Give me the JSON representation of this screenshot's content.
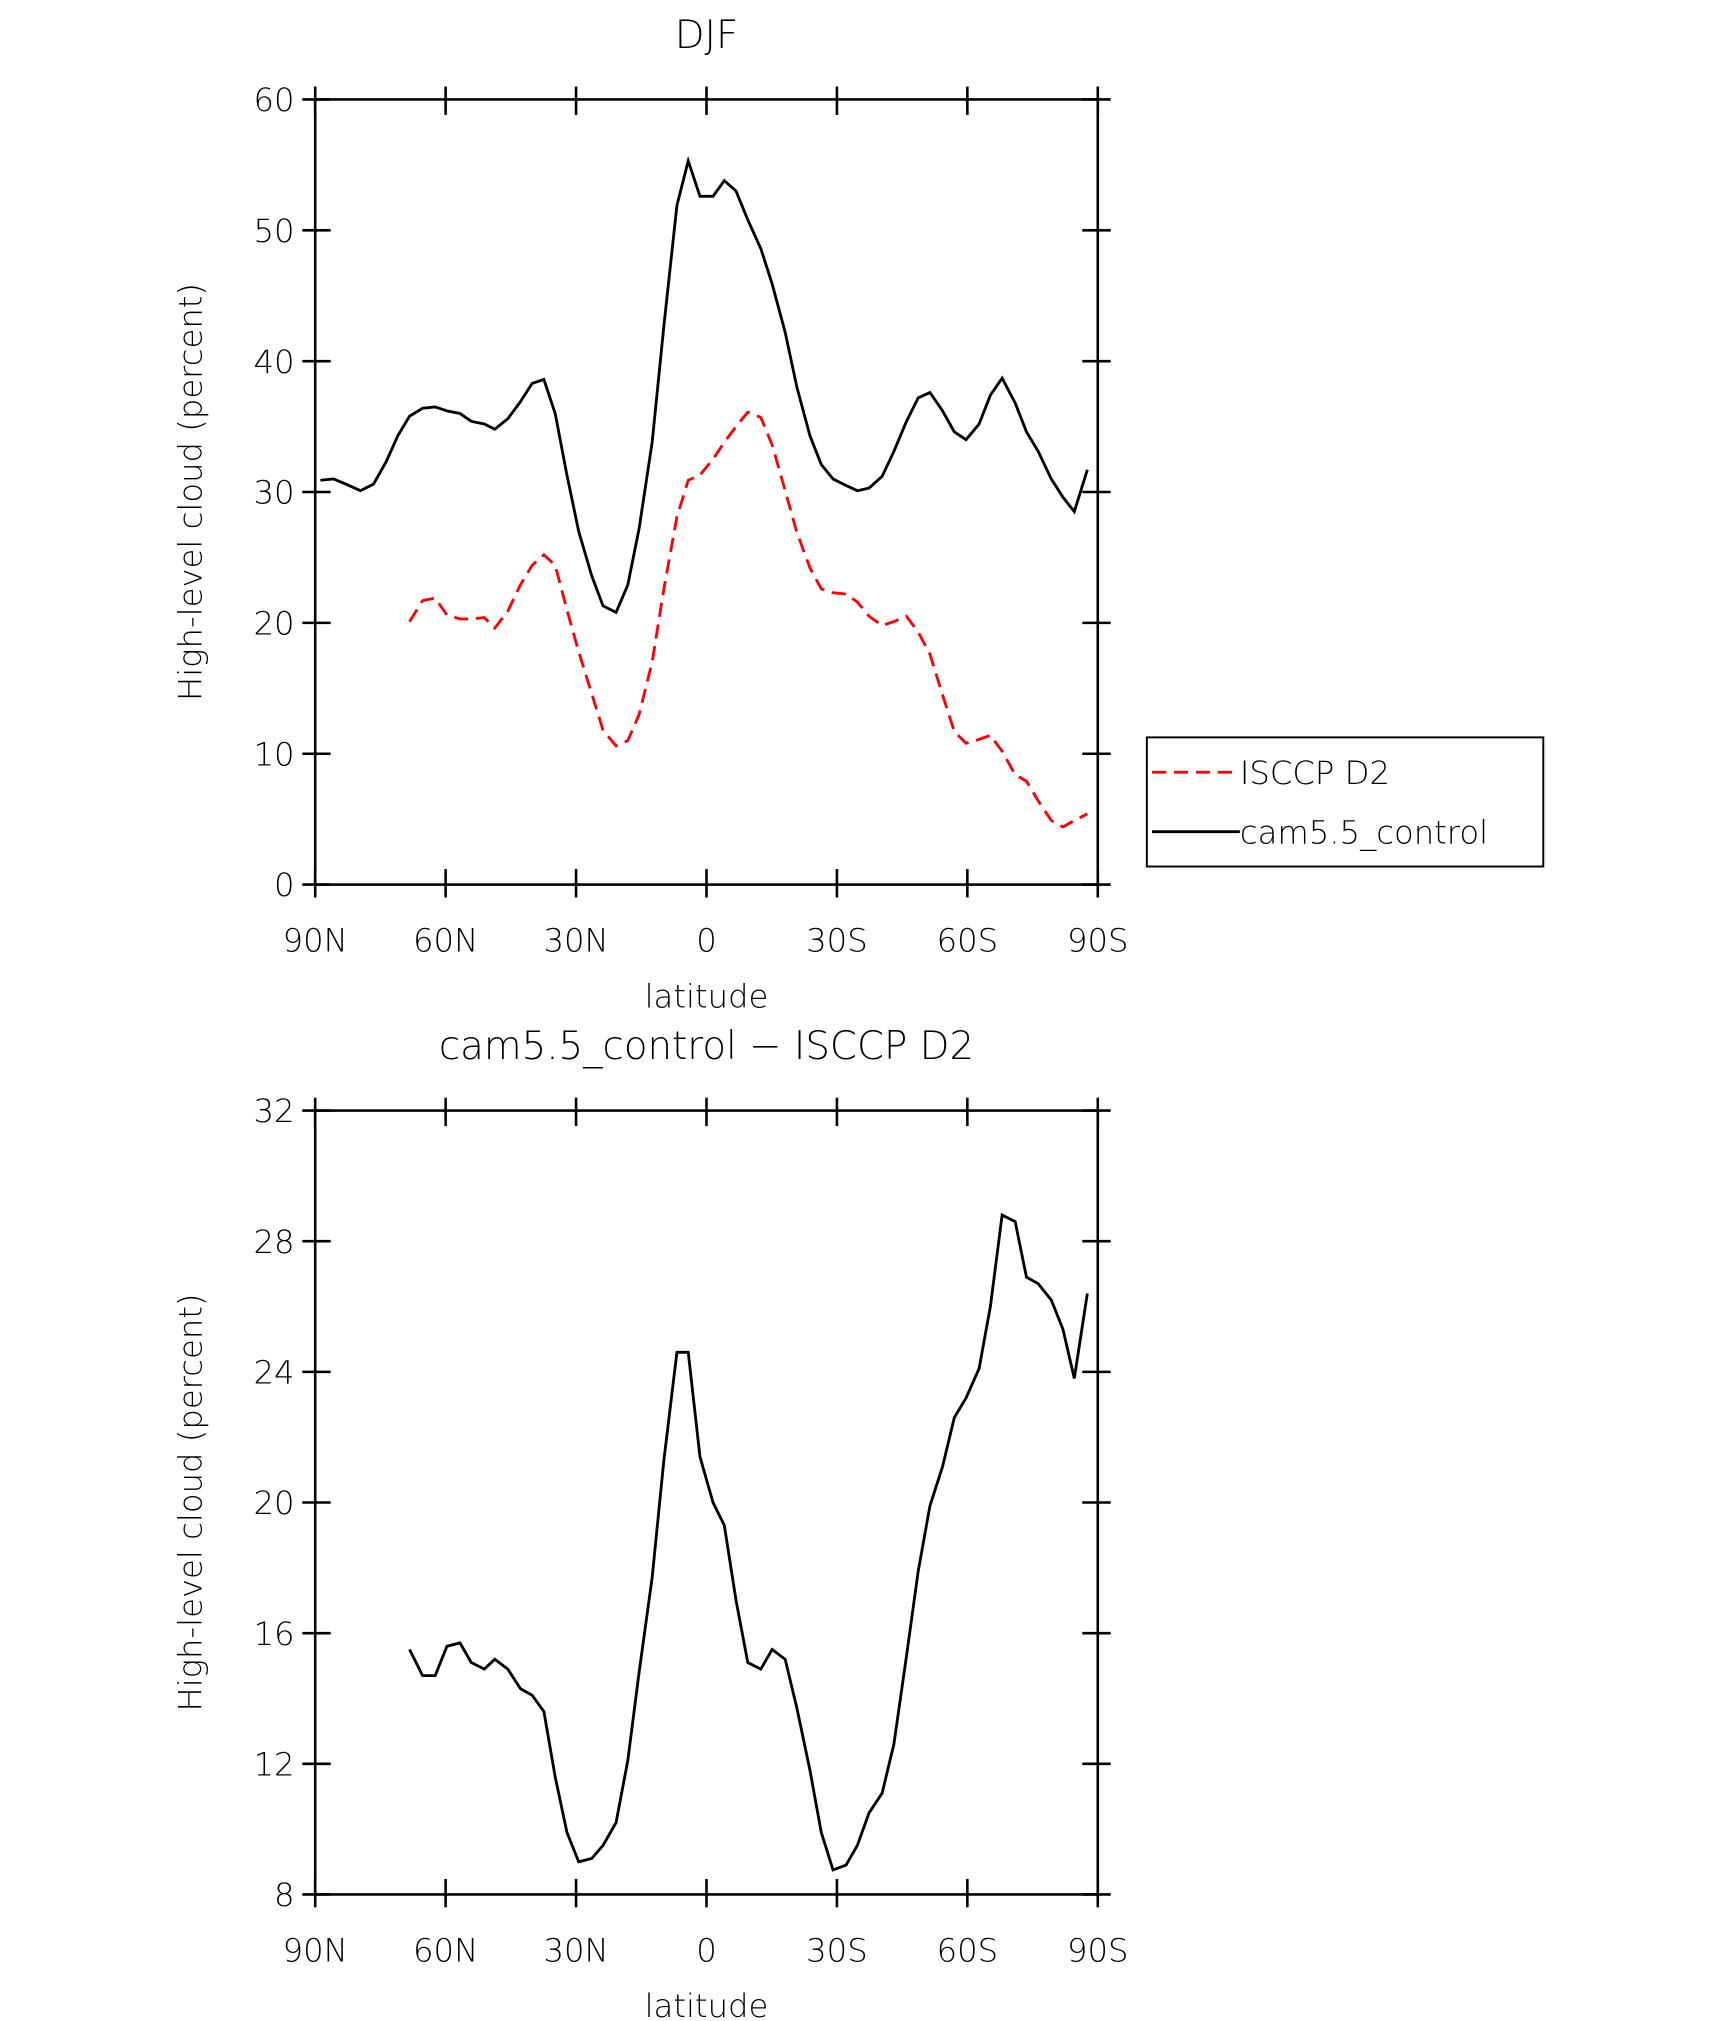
{
  "chart_data": [
    {
      "type": "line",
      "title": "DJF",
      "xlabel": "latitude",
      "ylabel": "High-level cloud (percent)",
      "x": [
        88.8,
        85.8,
        82.9,
        79.6,
        76.6,
        73.7,
        71.0,
        68.3,
        65.3,
        62.4,
        59.7,
        56.7,
        54.1,
        51.1,
        48.7,
        45.7,
        42.8,
        40.1,
        37.4,
        34.8,
        32.1,
        29.4,
        26.4,
        23.8,
        20.8,
        18.1,
        15.5,
        12.5,
        9.8,
        6.8,
        4.2,
        1.5,
        -1.5,
        -4.1,
        -6.8,
        -9.5,
        -12.5,
        -15.1,
        -18.1,
        -20.8,
        -23.8,
        -26.4,
        -29.1,
        -32.1,
        -34.7,
        -37.4,
        -40.4,
        -43.1,
        -46.0,
        -48.7,
        -51.4,
        -54.3,
        -57.0,
        -59.7,
        -62.7,
        -65.3,
        -68.0,
        -71.0,
        -73.6,
        -76.3,
        -79.3,
        -82.0,
        -84.6,
        -87.6
      ],
      "series": [
        {
          "name": "ISCCP D2",
          "color": "#ff0000",
          "line_style": "dashed",
          "values": [
            null,
            null,
            null,
            null,
            null,
            null,
            null,
            20.1,
            21.7,
            21.9,
            20.6,
            20.3,
            20.3,
            20.4,
            19.6,
            20.9,
            22.9,
            24.4,
            25.2,
            24.4,
            21.0,
            17.8,
            14.6,
            11.8,
            10.6,
            11.0,
            13.0,
            17.0,
            22.6,
            28.1,
            30.9,
            31.3,
            32.5,
            33.8,
            35.0,
            36.1,
            35.7,
            33.6,
            30.1,
            26.9,
            24.2,
            22.6,
            22.3,
            22.2,
            21.6,
            20.5,
            19.8,
            20.1,
            20.5,
            19.3,
            17.6,
            14.5,
            11.7,
            10.8,
            11.1,
            11.4,
            10.2,
            8.4,
            7.9,
            6.4,
            4.9,
            4.4,
            4.9,
            5.4
          ]
        },
        {
          "name": "cam5.5_control",
          "color": "#000000",
          "line_style": "solid",
          "values": [
            30.9,
            31.0,
            30.6,
            30.1,
            30.6,
            32.3,
            34.3,
            35.8,
            36.4,
            36.5,
            36.2,
            36.0,
            35.4,
            35.2,
            34.8,
            35.6,
            36.9,
            38.3,
            38.6,
            36.0,
            31.3,
            27.0,
            23.6,
            21.3,
            20.8,
            22.9,
            27.2,
            33.8,
            42.7,
            51.9,
            55.3,
            52.6,
            52.6,
            53.8,
            53.0,
            50.8,
            48.6,
            45.9,
            42.2,
            38.0,
            34.3,
            32.1,
            31.0,
            30.5,
            30.1,
            30.3,
            31.2,
            33.1,
            35.4,
            37.2,
            37.6,
            36.2,
            34.6,
            34.0,
            35.2,
            37.4,
            38.7,
            36.8,
            34.6,
            33.1,
            31.0,
            29.6,
            28.5,
            31.7
          ]
        }
      ],
      "xlim": [
        90,
        -90
      ],
      "xticks": [
        {
          "value": 90,
          "label": "90N"
        },
        {
          "value": 60,
          "label": "60N"
        },
        {
          "value": 30,
          "label": "30N"
        },
        0,
        {
          "value": -30,
          "label": "30S"
        },
        {
          "value": -60,
          "label": "60S"
        },
        {
          "value": -90,
          "label": "90S"
        }
      ],
      "ylim": [
        0,
        60
      ],
      "yticks": [
        0,
        10,
        20,
        30,
        40,
        50,
        60
      ],
      "legend": "right"
    },
    {
      "type": "line",
      "title": "cam5.5_control − ISCCP D2",
      "xlabel": "latitude",
      "ylabel": "High-level cloud (percent)",
      "x": [
        88.8,
        85.8,
        82.9,
        79.6,
        76.6,
        73.7,
        71.0,
        68.3,
        65.3,
        62.4,
        59.7,
        56.7,
        54.1,
        51.1,
        48.7,
        45.7,
        42.8,
        40.1,
        37.4,
        34.8,
        32.1,
        29.4,
        26.4,
        23.8,
        20.8,
        18.1,
        15.5,
        12.5,
        9.8,
        6.8,
        4.2,
        1.5,
        -1.5,
        -4.1,
        -6.8,
        -9.5,
        -12.5,
        -15.1,
        -18.1,
        -20.8,
        -23.8,
        -26.4,
        -29.1,
        -32.1,
        -34.7,
        -37.4,
        -40.4,
        -43.1,
        -46.0,
        -48.7,
        -51.4,
        -54.3,
        -57.0,
        -59.7,
        -62.7,
        -65.3,
        -68.0,
        -71.0,
        -73.6,
        -76.3,
        -79.3,
        -82.0,
        -84.6,
        -87.6
      ],
      "color": "#000000",
      "values": [
        null,
        null,
        null,
        null,
        null,
        null,
        null,
        15.5,
        14.7,
        14.7,
        15.6,
        15.7,
        15.1,
        14.9,
        15.2,
        14.9,
        14.3,
        14.1,
        13.6,
        11.6,
        9.9,
        9.0,
        9.1,
        9.5,
        10.2,
        12.1,
        14.8,
        17.7,
        21.3,
        24.6,
        24.6,
        21.4,
        20.0,
        19.3,
        17.0,
        15.1,
        14.9,
        15.5,
        15.2,
        13.7,
        11.8,
        9.9,
        8.75,
        8.9,
        9.5,
        10.5,
        11.1,
        12.6,
        15.3,
        17.9,
        19.9,
        21.1,
        22.6,
        23.2,
        24.1,
        26.0,
        28.8,
        28.6,
        26.9,
        26.7,
        26.2,
        25.3,
        23.8,
        26.4
      ],
      "xlim": [
        90,
        -90
      ],
      "xticks": [
        {
          "value": 90,
          "label": "90N"
        },
        {
          "value": 60,
          "label": "60N"
        },
        {
          "value": 30,
          "label": "30N"
        },
        0,
        {
          "value": -30,
          "label": "30S"
        },
        {
          "value": -60,
          "label": "60S"
        },
        {
          "value": -90,
          "label": "90S"
        }
      ],
      "ylim": [
        8,
        32
      ],
      "yticks": [
        8,
        12,
        16,
        20,
        24,
        28,
        32
      ]
    }
  ]
}
